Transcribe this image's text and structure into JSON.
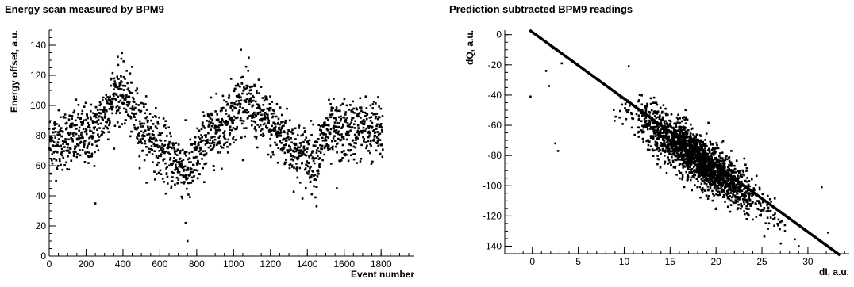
{
  "chart_data": [
    {
      "type": "scatter",
      "title": "Energy scan measured by BPM9",
      "xlabel": "Event number",
      "ylabel": "Energy offset, a.u.",
      "xlim": [
        0,
        1980
      ],
      "ylim": [
        0,
        150
      ],
      "xticks": [
        0,
        200,
        400,
        600,
        800,
        1000,
        1200,
        1400,
        1600,
        1800
      ],
      "yticks": [
        0,
        20,
        40,
        60,
        80,
        100,
        120,
        140
      ],
      "grid": false,
      "legend": "none",
      "marker_color": "#000000",
      "series": [
        {
          "points_count": 1800,
          "profile": {
            "x": [
              0,
              100,
              200,
              250,
              300,
              370,
              420,
              500,
              560,
              620,
              700,
              760,
              800,
              850,
              950,
              1050,
              1150,
              1250,
              1350,
              1450,
              1500,
              1600,
              1700,
              1810
            ],
            "y": [
              75,
              78,
              80,
              83,
              95,
              110,
              105,
              85,
              80,
              68,
              62,
              55,
              65,
              78,
              88,
              104,
              92,
              82,
              68,
              65,
              80,
              82,
              85,
              82
            ]
          },
          "spread": 10,
          "outliers": [
            [
              740,
              22
            ],
            [
              750,
              10
            ],
            [
              1040,
              137
            ],
            [
              250,
              35
            ],
            [
              1240,
              62
            ],
            [
              1450,
              33
            ],
            [
              1560,
              45
            ]
          ]
        }
      ]
    },
    {
      "type": "scatter",
      "title": "Prediction subtracted BPM9 readings",
      "xlabel": "dI, a.u.",
      "ylabel": "dQ, a.u.",
      "xlim": [
        -3,
        34.5
      ],
      "ylim": [
        -145,
        3
      ],
      "xticks": [
        0,
        5,
        10,
        15,
        20,
        25,
        30
      ],
      "yticks": [
        0,
        -20,
        -40,
        -60,
        -80,
        -100,
        -120,
        -140
      ],
      "grid": false,
      "legend": "none",
      "marker_color": "#000000",
      "fit_line": {
        "x": [
          -0.3,
          33.5
        ],
        "y": [
          3,
          -146
        ]
      },
      "series": [
        {
          "points_count": 2000,
          "center": [
            18,
            -82
          ],
          "spread_x": 3.2,
          "spread_along_line": -4.3,
          "spread_y": 8,
          "outliers": [
            [
              -0.2,
              -41
            ],
            [
              1.5,
              -24
            ],
            [
              1.8,
              -34
            ],
            [
              2.2,
              -9
            ],
            [
              2.5,
              -72
            ],
            [
              2.8,
              -77
            ],
            [
              3.2,
              -19
            ],
            [
              10.5,
              -21
            ],
            [
              31.5,
              -101
            ],
            [
              32.2,
              -131
            ],
            [
              27.5,
              -130
            ],
            [
              29,
              -140
            ]
          ]
        }
      ]
    }
  ]
}
